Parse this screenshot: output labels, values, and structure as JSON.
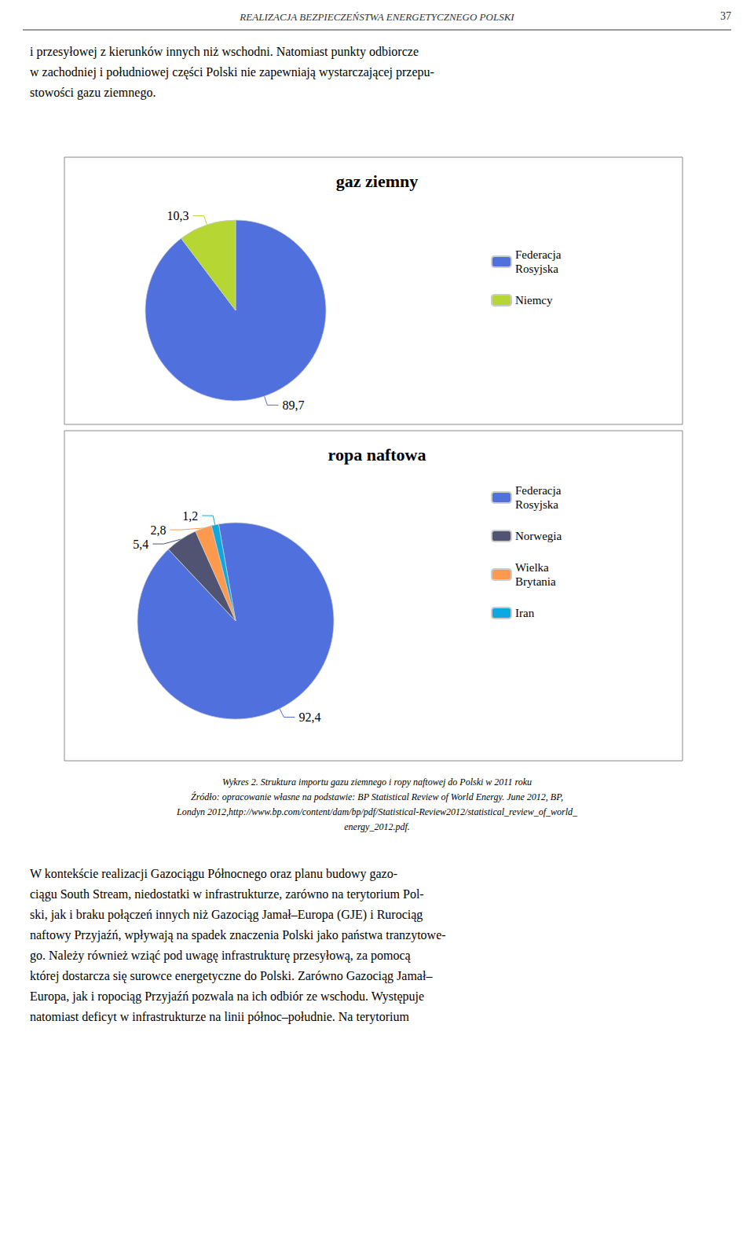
{
  "chart_data": [
    {
      "type": "pie",
      "title": "gaz ziemny",
      "categories": [
        "Federacja\nRosyjska",
        "Niemcy"
      ],
      "values": [
        89.7,
        10.3
      ],
      "value_labels": [
        "89,7",
        "10,3"
      ],
      "data_labels": true,
      "legend": "right",
      "annotations": [
        "REALIZACJA BEZPIECZEŃSTWA ENERGETYCZNEGO POLSKI",
        "37",
        "i przesyłowej z kierunków innych niż wschodni. Natomiast punkty odbiorcze\nw zachodniej i południowej części Polski nie zapewniają wystarczającej przepu-\nstowości gazu ziemnego."
      ]
    },
    {
      "type": "pie",
      "title": "ropa naftowa",
      "categories": [
        "Federacja\nRosyjska",
        "Norwegia",
        "Wielka\nBrytania",
        "Iran"
      ],
      "values": [
        92.4,
        5.4,
        2.8,
        1.2
      ],
      "value_labels": [
        "92,4",
        "5,4",
        "2,8",
        "1,2"
      ],
      "data_labels": true,
      "legend": "right",
      "annotations": [
        "Wykres 2. Struktura importu gazu ziemnego i ropy naftowej do Polski w 2011 roku\nŹródło: opracowanie własne na podstawie: BP Statistical Review of World Energy. June 2012, BP,\nLondyn 2012,http://www.bp.com/content/dam/bp/pdf/Statistical-Review2012/statistical_review_of_world_\nenergy_2012.pdf.",
        "W kontekście realizacji Gazociągu Północnego oraz planu budowy gazo-\nciągu South Stream, niedostatki w infrastrukturze, zarówno na terytorium Pol-\nski, jak i braku połączeń innych niż Gazociąg Jamał–Europa (GJE) i Rurociąg\nnaftowy Przyjaźń, wpływają na spadek znaczenia Polski jako państwa tranzytowe-\ngo. Należy również wziąć pod uwagę infrastrukturę przesyłową, za pomocą\nktórej dostarcza się surowce energetyczne do Polski. Zarówno Gazociąg Jamał–\nEuropa, jak i ropociąg Przyjaźń pozwala na ich odbiór ze wschodu. Występuje\nnatomiast deficyt w infrastrukturze na linii północ–południe. Na terytorium"
      ]
    }
  ]
}
